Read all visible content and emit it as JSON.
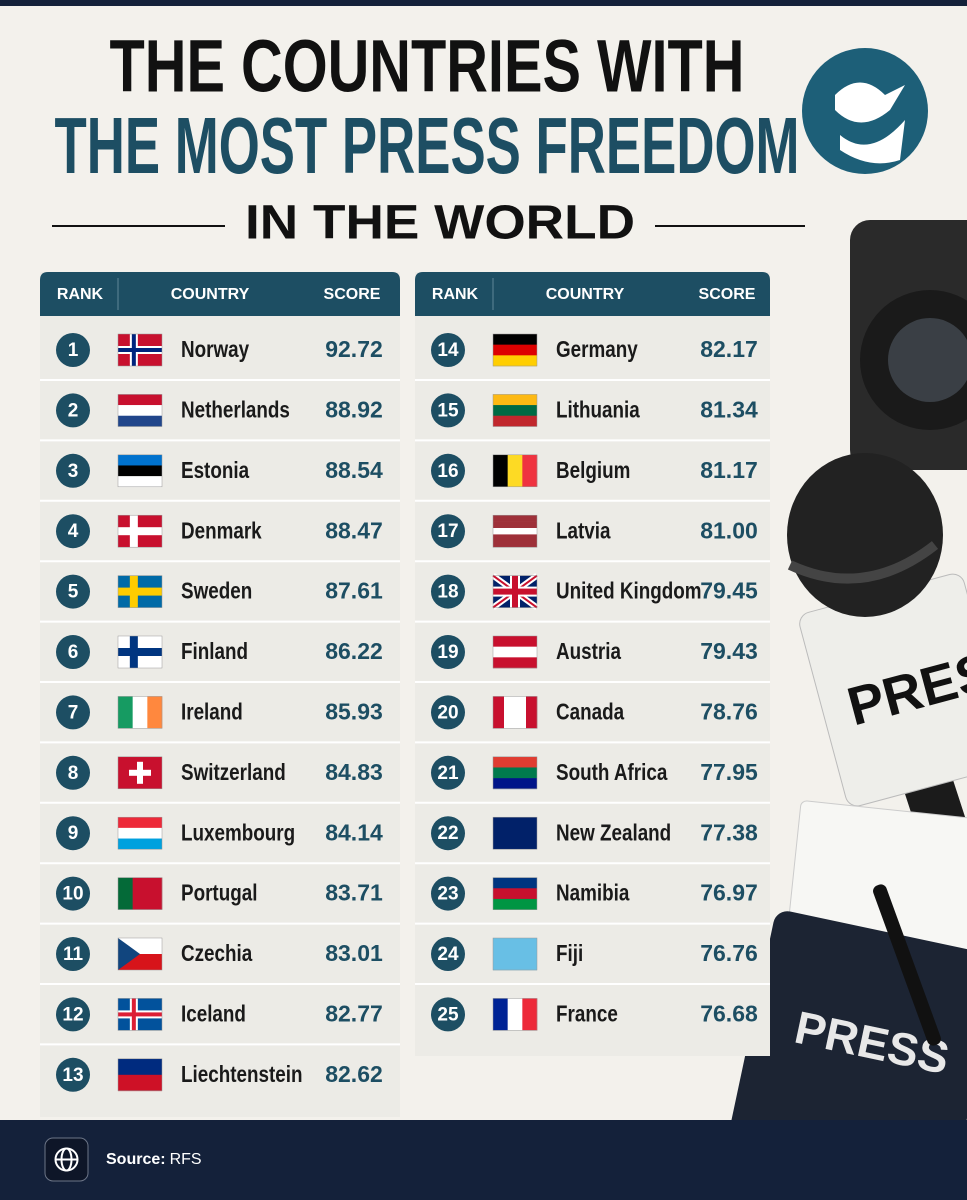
{
  "header": {
    "title_line1": "THE COUNTRIES WITH",
    "title_line2": "THE MOST PRESS FREEDOM",
    "title_line3": "IN THE WORLD"
  },
  "table": {
    "columns": [
      "RANK",
      "COUNTRY",
      "SCORE"
    ],
    "rows": [
      [
        1,
        "Norway",
        "92.72"
      ],
      [
        2,
        "Netherlands",
        "88.92"
      ],
      [
        3,
        "Estonia",
        "88.54"
      ],
      [
        4,
        "Denmark",
        "88.47"
      ],
      [
        5,
        "Sweden",
        "87.61"
      ],
      [
        6,
        "Finland",
        "86.22"
      ],
      [
        7,
        "Ireland",
        "85.93"
      ],
      [
        8,
        "Switzerland",
        "84.83"
      ],
      [
        9,
        "Luxembourg",
        "84.14"
      ],
      [
        10,
        "Portugal",
        "83.71"
      ],
      [
        11,
        "Czechia",
        "83.01"
      ],
      [
        12,
        "Iceland",
        "82.77"
      ],
      [
        13,
        "Liechtenstein",
        "82.62"
      ],
      [
        14,
        "Germany",
        "82.17"
      ],
      [
        15,
        "Lithuania",
        "81.34"
      ],
      [
        16,
        "Belgium",
        "81.17"
      ],
      [
        17,
        "Latvia",
        "81.00"
      ],
      [
        18,
        "United Kingdom",
        "79.45"
      ],
      [
        19,
        "Austria",
        "79.43"
      ],
      [
        20,
        "Canada",
        "78.76"
      ],
      [
        21,
        "South Africa",
        "77.95"
      ],
      [
        22,
        "New Zealand",
        "77.38"
      ],
      [
        23,
        "Namibia",
        "76.97"
      ],
      [
        24,
        "Fiji",
        "76.76"
      ],
      [
        25,
        "France",
        "76.68"
      ]
    ]
  },
  "decor": {
    "mic_label": "PRESS",
    "card_label": "PRESS"
  },
  "source": {
    "label": "Source:",
    "value": "RFS"
  }
}
